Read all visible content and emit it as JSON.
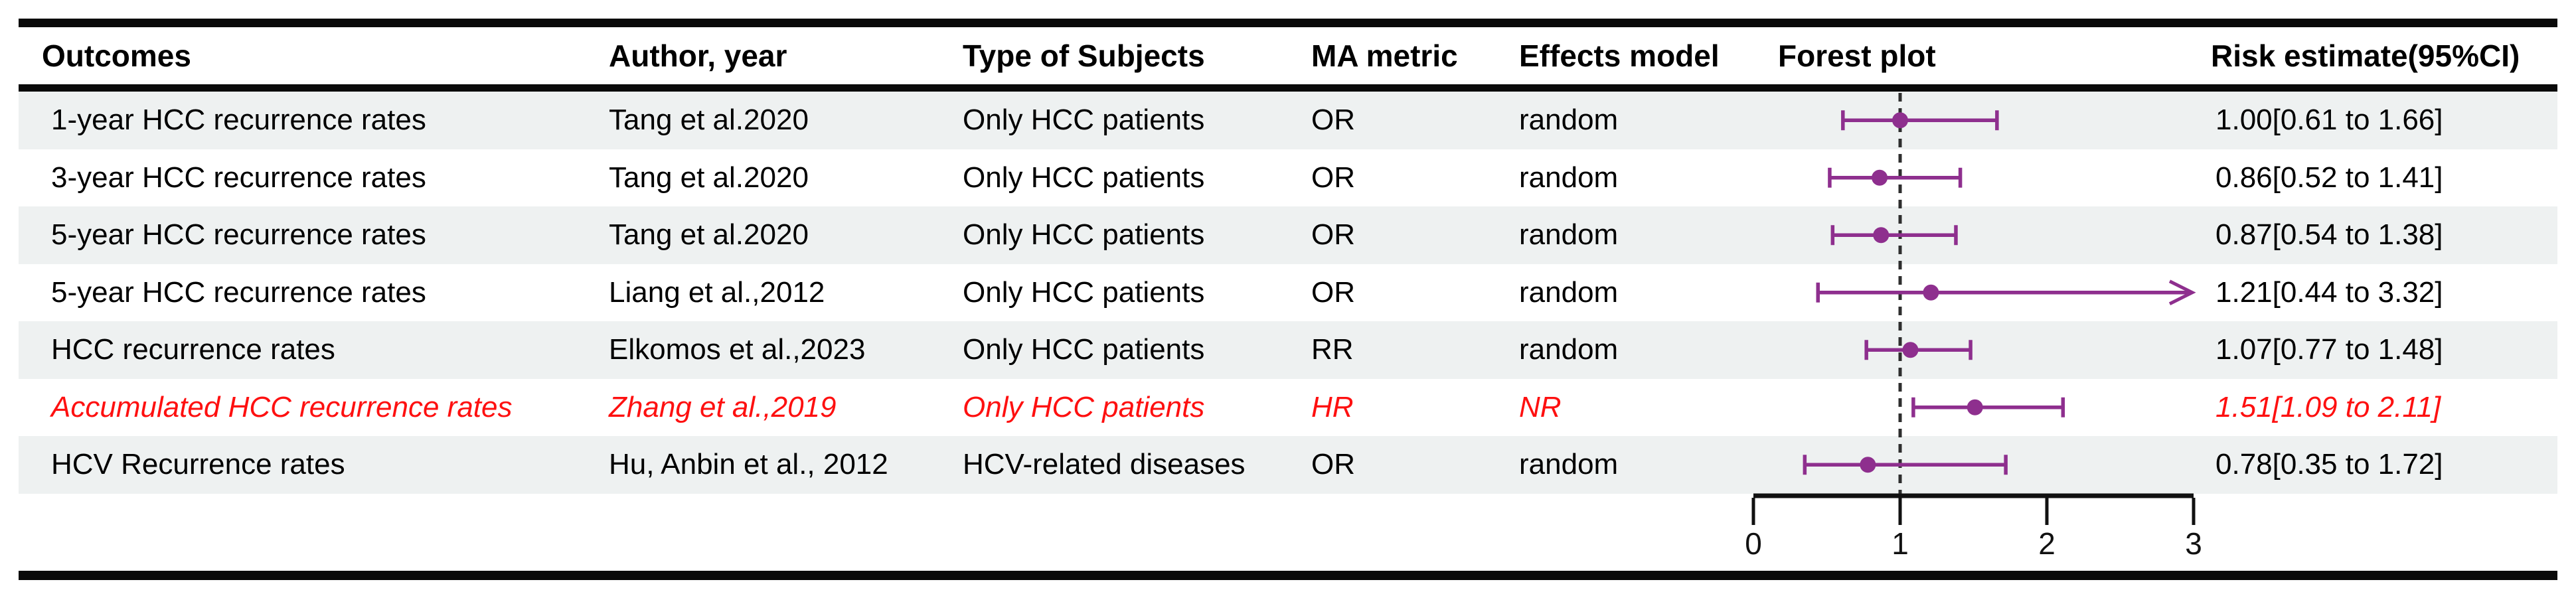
{
  "header": {
    "columns": [
      "Outcomes",
      "Author, year",
      "Type of Subjects",
      "MA metric",
      "Effects model",
      "Forest plot",
      "Risk estimate(95%CI)"
    ]
  },
  "rows": [
    {
      "outcome": "1-year HCC recurrence rates",
      "author": "Tang et al.2020",
      "subjects": "Only HCC patients",
      "metric": "OR",
      "model": "random",
      "estimate": "1.00[0.61 to 1.66]"
    },
    {
      "outcome": "3-year HCC recurrence rates",
      "author": "Tang et al.2020",
      "subjects": "Only HCC patients",
      "metric": "OR",
      "model": "random",
      "estimate": "0.86[0.52 to 1.41]"
    },
    {
      "outcome": "5-year HCC recurrence rates",
      "author": "Tang et al.2020",
      "subjects": "Only HCC patients",
      "metric": "OR",
      "model": "random",
      "estimate": "0.87[0.54 to 1.38]"
    },
    {
      "outcome": "5-year HCC recurrence rates",
      "author": "Liang et al.,2012",
      "subjects": "Only HCC patients",
      "metric": "OR",
      "model": "random",
      "estimate": "1.21[0.44 to 3.32]"
    },
    {
      "outcome": "HCC recurrence rates",
      "author": "Elkomos et al.,2023",
      "subjects": "Only HCC patients",
      "metric": "RR",
      "model": "random",
      "estimate": "1.07[0.77 to 1.48]"
    },
    {
      "outcome": "Accumulated HCC recurrence rates",
      "author": "Zhang et al.,2019",
      "subjects": "Only HCC patients",
      "metric": "HR",
      "model": "NR",
      "estimate": "1.51[1.09 to 2.11]"
    },
    {
      "outcome": "HCV Recurrence rates",
      "author": "Hu, Anbin et al., 2012",
      "subjects": "HCV-related diseases",
      "metric": "OR",
      "model": "random",
      "estimate": "0.78[0.35 to 1.72]"
    }
  ],
  "chart_data": {
    "type": "forest",
    "title": "Forest plot",
    "x_ticks": [
      0,
      1,
      2,
      3
    ],
    "x_min": 0,
    "x_max": 3,
    "reference_line": 1,
    "series": [
      {
        "label": "1-year HCC recurrence rates",
        "estimate": 1.0,
        "ci_low": 0.61,
        "ci_high": 1.66,
        "clipped_high": false,
        "highlight": false
      },
      {
        "label": "3-year HCC recurrence rates",
        "estimate": 0.86,
        "ci_low": 0.52,
        "ci_high": 1.41,
        "clipped_high": false,
        "highlight": false
      },
      {
        "label": "5-year HCC recurrence rates",
        "estimate": 0.87,
        "ci_low": 0.54,
        "ci_high": 1.38,
        "clipped_high": false,
        "highlight": false
      },
      {
        "label": "5-year HCC recurrence rates",
        "estimate": 1.21,
        "ci_low": 0.44,
        "ci_high": 3.32,
        "clipped_high": true,
        "highlight": false
      },
      {
        "label": "HCC recurrence rates",
        "estimate": 1.07,
        "ci_low": 0.77,
        "ci_high": 1.48,
        "clipped_high": false,
        "highlight": false
      },
      {
        "label": "Accumulated HCC recurrence rates",
        "estimate": 1.51,
        "ci_low": 1.09,
        "ci_high": 2.11,
        "clipped_high": false,
        "highlight": true
      },
      {
        "label": "HCV Recurrence rates",
        "estimate": 0.78,
        "ci_low": 0.35,
        "ci_high": 1.72,
        "clipped_high": false,
        "highlight": false
      }
    ]
  },
  "colors": {
    "marker": "#8e2f8e",
    "band": "#eef1f1",
    "highlight_text": "#fe1010",
    "border": "#0a0a0a",
    "reference_line": "#2e2e2e",
    "axis": "#111111"
  }
}
